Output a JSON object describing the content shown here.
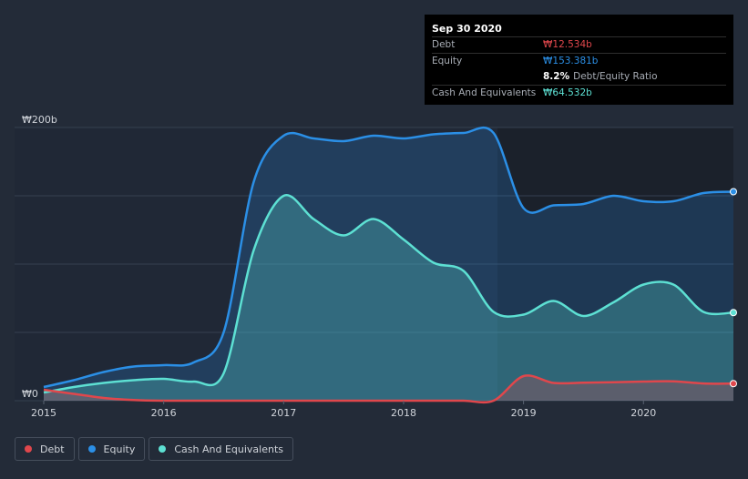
{
  "tooltip": {
    "date": "Sep 30 2020",
    "debt_label": "Debt",
    "debt_value": "₩12.534b",
    "equity_label": "Equity",
    "equity_value": "₩153.381b",
    "ratio_value": "8.2%",
    "ratio_label": "Debt/Equity Ratio",
    "cash_label": "Cash And Equivalents",
    "cash_value": "₩64.532b"
  },
  "legend": [
    {
      "label": "Debt",
      "color": "#e0474c"
    },
    {
      "label": "Equity",
      "color": "#2b8fe6"
    },
    {
      "label": "Cash And Equivalents",
      "color": "#5de0d3"
    }
  ],
  "colors": {
    "background": "#232b38",
    "debt": "#e0474c",
    "equity": "#2b8fe6",
    "cash": "#5de0d3"
  },
  "chart_data": {
    "type": "area",
    "title": "",
    "xlabel": "",
    "ylabel": "",
    "x_ticks": [
      "2015",
      "2016",
      "2017",
      "2018",
      "2019",
      "2020"
    ],
    "x_tick_values": [
      2015,
      2016,
      2017,
      2018,
      2019,
      2020
    ],
    "y_tick_labels": [
      "₩0",
      "₩200b"
    ],
    "y_tick_values": [
      0,
      200
    ],
    "xlim": [
      2015.0,
      2020.75
    ],
    "ylim": [
      0,
      200
    ],
    "units": "₩ billions",
    "series": [
      {
        "name": "Equity",
        "x": [
          2015.0,
          2015.25,
          2015.5,
          2015.75,
          2016.0,
          2016.25,
          2016.5,
          2016.75,
          2017.0,
          2017.25,
          2017.5,
          2017.75,
          2018.0,
          2018.25,
          2018.5,
          2018.75,
          2019.0,
          2019.25,
          2019.5,
          2019.75,
          2020.0,
          2020.25,
          2020.5,
          2020.75
        ],
        "values": [
          10,
          15,
          21,
          25,
          26,
          28,
          50,
          160,
          194,
          192,
          190,
          194,
          192,
          195,
          196,
          196,
          141,
          143,
          144,
          150,
          146,
          146,
          152,
          153
        ]
      },
      {
        "name": "Cash And Equivalents",
        "x": [
          2015.0,
          2015.25,
          2015.5,
          2015.75,
          2016.0,
          2016.25,
          2016.5,
          2016.75,
          2017.0,
          2017.25,
          2017.5,
          2017.75,
          2018.0,
          2018.25,
          2018.5,
          2018.75,
          2019.0,
          2019.25,
          2019.5,
          2019.75,
          2020.0,
          2020.25,
          2020.5,
          2020.75
        ],
        "values": [
          6,
          10,
          13,
          15,
          16,
          14,
          20,
          110,
          150,
          133,
          121,
          133,
          118,
          101,
          95,
          65,
          63,
          73,
          62,
          72,
          85,
          85,
          65,
          64.5
        ]
      },
      {
        "name": "Debt",
        "x": [
          2015.0,
          2015.25,
          2015.5,
          2015.75,
          2016.0,
          2016.25,
          2016.5,
          2016.75,
          2017.0,
          2017.25,
          2017.5,
          2017.75,
          2018.0,
          2018.25,
          2018.5,
          2018.75,
          2019.0,
          2019.25,
          2019.5,
          2019.75,
          2020.0,
          2020.25,
          2020.5,
          2020.75
        ],
        "values": [
          8,
          5,
          2,
          0.5,
          0,
          0,
          0,
          0,
          0,
          0,
          0,
          0,
          0,
          0,
          0,
          0,
          18,
          13,
          13.2,
          13.5,
          14,
          14.2,
          12.6,
          12.5
        ]
      }
    ]
  }
}
